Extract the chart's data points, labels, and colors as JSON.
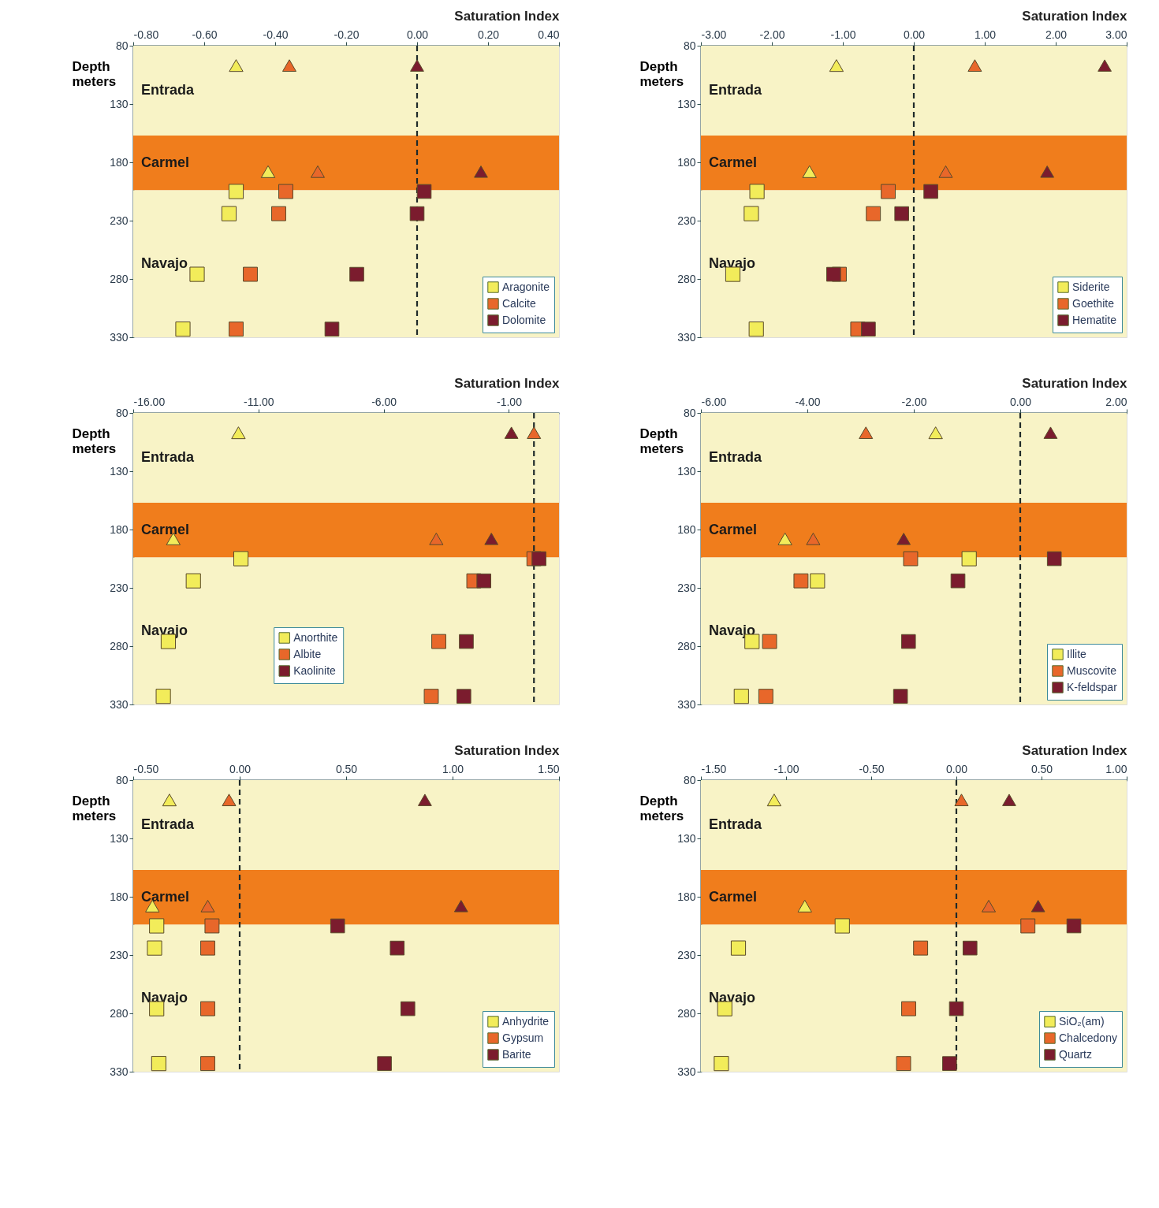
{
  "chart_data": [
    {
      "type": "scatter",
      "xlabel": "Saturation Index",
      "ylabel": "Depth meters",
      "xlim": [
        -0.8,
        0.4
      ],
      "ylim": [
        330,
        80
      ],
      "xticks": [
        {
          "value": -0.8,
          "label": "-0.80"
        },
        {
          "value": -0.6,
          "label": "-0.60"
        },
        {
          "value": -0.4,
          "label": "-0.40"
        },
        {
          "value": -0.2,
          "label": "-0.20"
        },
        {
          "value": 0,
          "label": "0.00"
        },
        {
          "value": 0.2,
          "label": "0.20"
        },
        {
          "value": 0.4,
          "label": "0.40"
        }
      ],
      "yticks": [
        80,
        130,
        180,
        230,
        280,
        330
      ],
      "grid": false,
      "legend": "bottom right",
      "bands": [
        {
          "axis": "y",
          "from": 80,
          "to": 157,
          "label": "Entrada",
          "color": "#f8f3c6"
        },
        {
          "axis": "y",
          "from": 157,
          "to": 204,
          "label": "Carmel",
          "color": "#f07d1c"
        },
        {
          "axis": "y",
          "from": 204,
          "to": 330,
          "label": "Navajo",
          "color": "#f8f3c6"
        }
      ],
      "ref_lines": [
        {
          "axis": "x",
          "value": 0,
          "line_style": "dashed",
          "color": "#1f2a2a"
        }
      ],
      "series": [
        {
          "name": "Aragonite",
          "color": "#f2ec5a",
          "marker": "square",
          "x": [
            -0.51,
            -0.53,
            -0.62,
            -0.66
          ],
          "values": [
            205,
            224,
            276,
            323
          ]
        },
        {
          "name": "Calcite",
          "color": "#e8672a",
          "marker": "square",
          "x": [
            -0.37,
            -0.39,
            -0.47,
            -0.51
          ],
          "values": [
            205,
            224,
            276,
            323
          ]
        },
        {
          "name": "Dolomite",
          "color": "#7b1c2e",
          "marker": "square",
          "x": [
            0.02,
            0.0,
            -0.17,
            -0.24
          ],
          "values": [
            205,
            224,
            276,
            323
          ]
        },
        {
          "color": "#f2ec5a",
          "marker": "triangle",
          "x": [
            -0.51,
            -0.42
          ],
          "values": [
            97,
            188
          ]
        },
        {
          "color": "#e8672a",
          "marker": "triangle",
          "x": [
            -0.36,
            -0.28
          ],
          "values": [
            97,
            188
          ]
        },
        {
          "color": "#7b1c2e",
          "marker": "triangle",
          "x": [
            0.0,
            0.18
          ],
          "values": [
            97,
            188
          ]
        }
      ]
    },
    {
      "type": "scatter",
      "xlabel": "Saturation Index",
      "ylabel": "Depth meters",
      "xlim": [
        -3,
        3
      ],
      "ylim": [
        330,
        80
      ],
      "xticks": [
        {
          "value": -3,
          "label": "-3.00"
        },
        {
          "value": -2,
          "label": "-2.00"
        },
        {
          "value": -1,
          "label": "-1.00"
        },
        {
          "value": 0,
          "label": "0.00"
        },
        {
          "value": 1,
          "label": "1.00"
        },
        {
          "value": 2,
          "label": "2.00"
        },
        {
          "value": 3,
          "label": "3.00"
        }
      ],
      "yticks": [
        80,
        130,
        180,
        230,
        280,
        330
      ],
      "grid": false,
      "legend": "bottom right",
      "bands": [
        {
          "axis": "y",
          "from": 80,
          "to": 157,
          "label": "Entrada",
          "color": "#f8f3c6"
        },
        {
          "axis": "y",
          "from": 157,
          "to": 204,
          "label": "Carmel",
          "color": "#f07d1c"
        },
        {
          "axis": "y",
          "from": 204,
          "to": 330,
          "label": "Navajo",
          "color": "#f8f3c6"
        }
      ],
      "ref_lines": [
        {
          "axis": "x",
          "value": 0,
          "line_style": "dashed",
          "color": "#1f2a2a"
        }
      ],
      "series": [
        {
          "name": "Siderite",
          "color": "#f2ec5a",
          "marker": "square",
          "x": [
            -2.21,
            -2.29,
            -2.55,
            -2.22
          ],
          "values": [
            205,
            224,
            276,
            323
          ]
        },
        {
          "name": "Goethite",
          "color": "#e8672a",
          "marker": "square",
          "x": [
            -0.36,
            -0.57,
            -1.05,
            -0.79
          ],
          "values": [
            205,
            224,
            276,
            323
          ]
        },
        {
          "name": "Hematite",
          "color": "#7b1c2e",
          "marker": "square",
          "x": [
            0.24,
            -0.17,
            -1.13,
            -0.64
          ],
          "values": [
            205,
            224,
            276,
            323
          ]
        },
        {
          "color": "#f2ec5a",
          "marker": "triangle",
          "x": [
            -1.09,
            -1.47
          ],
          "values": [
            97,
            188
          ]
        },
        {
          "color": "#e8672a",
          "marker": "triangle",
          "x": [
            0.86,
            0.45
          ],
          "values": [
            97,
            188
          ]
        },
        {
          "color": "#7b1c2e",
          "marker": "triangle",
          "x": [
            2.69,
            1.88
          ],
          "values": [
            97,
            188
          ]
        }
      ]
    },
    {
      "type": "scatter",
      "xlabel": "Saturation Index",
      "ylabel": "Depth meters",
      "xlim": [
        -16,
        1
      ],
      "ylim": [
        330,
        80
      ],
      "xticks": [
        {
          "value": -16,
          "label": "-16.00"
        },
        {
          "value": -11,
          "label": "-11.00"
        },
        {
          "value": -6,
          "label": "-6.00"
        },
        {
          "value": -1,
          "label": "-1.00"
        }
      ],
      "yticks": [
        80,
        130,
        180,
        230,
        280,
        330
      ],
      "grid": false,
      "legend": "bottom",
      "bands": [
        {
          "axis": "y",
          "from": 80,
          "to": 157,
          "label": "Entrada",
          "color": "#f8f3c6"
        },
        {
          "axis": "y",
          "from": 157,
          "to": 204,
          "label": "Carmel",
          "color": "#f07d1c"
        },
        {
          "axis": "y",
          "from": 204,
          "to": 330,
          "label": "Navajo",
          "color": "#f8f3c6"
        }
      ],
      "ref_lines": [
        {
          "axis": "x",
          "value": 0,
          "line_style": "dashed",
          "color": "#1f2a2a"
        }
      ],
      "series": [
        {
          "name": "Anorthite",
          "color": "#f2ec5a",
          "marker": "square",
          "x": [
            -11.7,
            -13.6,
            -14.6,
            -14.8
          ],
          "values": [
            205,
            224,
            276,
            323
          ]
        },
        {
          "name": "Albite",
          "color": "#e8672a",
          "marker": "square",
          "x": [
            0.0,
            -2.4,
            -3.8,
            -4.1
          ],
          "values": [
            205,
            224,
            276,
            323
          ]
        },
        {
          "name": "Kaolinite",
          "color": "#7b1c2e",
          "marker": "square",
          "x": [
            0.2,
            -2.0,
            -2.7,
            -2.8
          ],
          "values": [
            205,
            224,
            276,
            323
          ]
        },
        {
          "color": "#f2ec5a",
          "marker": "triangle",
          "x": [
            -11.8,
            -14.4
          ],
          "values": [
            97,
            188
          ]
        },
        {
          "color": "#e8672a",
          "marker": "triangle",
          "x": [
            0.0,
            -3.9
          ],
          "values": [
            97,
            188
          ]
        },
        {
          "color": "#7b1c2e",
          "marker": "triangle",
          "x": [
            -0.9,
            -1.7
          ],
          "values": [
            97,
            188
          ]
        }
      ]
    },
    {
      "type": "scatter",
      "xlabel": "Saturation Index",
      "ylabel": "Depth meters",
      "xlim": [
        -6,
        2
      ],
      "ylim": [
        330,
        80
      ],
      "xticks": [
        {
          "value": -6,
          "label": "-6.00"
        },
        {
          "value": -4,
          "label": "-4.00"
        },
        {
          "value": -2,
          "label": "-2.00"
        },
        {
          "value": 0,
          "label": "0.00"
        },
        {
          "value": 2,
          "label": "2.00"
        }
      ],
      "yticks": [
        80,
        130,
        180,
        230,
        280,
        330
      ],
      "grid": false,
      "legend": "bottom right",
      "bands": [
        {
          "axis": "y",
          "from": 80,
          "to": 157,
          "label": "Entrada",
          "color": "#f8f3c6"
        },
        {
          "axis": "y",
          "from": 157,
          "to": 204,
          "label": "Carmel",
          "color": "#f07d1c"
        },
        {
          "axis": "y",
          "from": 204,
          "to": 330,
          "label": "Navajo",
          "color": "#f8f3c6"
        }
      ],
      "ref_lines": [
        {
          "axis": "x",
          "value": 0,
          "line_style": "dashed",
          "color": "#1f2a2a"
        }
      ],
      "series": [
        {
          "name": "Illite",
          "color": "#f2ec5a",
          "marker": "square",
          "x": [
            -0.96,
            -3.81,
            -5.04,
            -5.24
          ],
          "values": [
            205,
            224,
            276,
            323
          ]
        },
        {
          "name": "Muscovite",
          "color": "#e8672a",
          "marker": "square",
          "x": [
            -2.06,
            -4.12,
            -4.71,
            -4.78
          ],
          "values": [
            205,
            224,
            276,
            323
          ]
        },
        {
          "name": "K-feldspar",
          "color": "#7b1c2e",
          "marker": "square",
          "x": [
            0.64,
            -1.17,
            -2.1,
            -2.25
          ],
          "values": [
            205,
            224,
            276,
            323
          ]
        },
        {
          "color": "#f2ec5a",
          "marker": "triangle",
          "x": [
            -1.59,
            -4.42
          ],
          "values": [
            97,
            188
          ]
        },
        {
          "color": "#e8672a",
          "marker": "triangle",
          "x": [
            -2.9,
            -3.89
          ],
          "values": [
            97,
            188
          ]
        },
        {
          "color": "#7b1c2e",
          "marker": "triangle",
          "x": [
            0.57,
            -2.19
          ],
          "values": [
            97,
            188
          ]
        }
      ]
    },
    {
      "type": "scatter",
      "xlabel": "Saturation Index",
      "ylabel": "Depth meters",
      "xlim": [
        -0.5,
        1.5
      ],
      "ylim": [
        330,
        80
      ],
      "xticks": [
        {
          "value": -0.5,
          "label": "-0.50"
        },
        {
          "value": 0,
          "label": "0.00"
        },
        {
          "value": 0.5,
          "label": "0.50"
        },
        {
          "value": 1,
          "label": "1.00"
        },
        {
          "value": 1.5,
          "label": "1.50"
        }
      ],
      "yticks": [
        80,
        130,
        180,
        230,
        280,
        330
      ],
      "grid": false,
      "legend": "bottom right",
      "bands": [
        {
          "axis": "y",
          "from": 80,
          "to": 157,
          "label": "Entrada",
          "color": "#f8f3c6"
        },
        {
          "axis": "y",
          "from": 157,
          "to": 204,
          "label": "Carmel",
          "color": "#f07d1c"
        },
        {
          "axis": "y",
          "from": 204,
          "to": 330,
          "label": "Navajo",
          "color": "#f8f3c6"
        }
      ],
      "ref_lines": [
        {
          "axis": "x",
          "value": 0,
          "line_style": "dashed",
          "color": "#1f2a2a"
        }
      ],
      "series": [
        {
          "name": "Anhydrite",
          "color": "#f2ec5a",
          "marker": "square",
          "x": [
            -0.39,
            -0.4,
            -0.39,
            -0.38
          ],
          "values": [
            205,
            224,
            276,
            323
          ]
        },
        {
          "name": "Gypsum",
          "color": "#e8672a",
          "marker": "square",
          "x": [
            -0.13,
            -0.15,
            -0.15,
            -0.15
          ],
          "values": [
            205,
            224,
            276,
            323
          ]
        },
        {
          "name": "Barite",
          "color": "#7b1c2e",
          "marker": "square",
          "x": [
            0.46,
            0.74,
            0.79,
            0.68
          ],
          "values": [
            205,
            224,
            276,
            323
          ]
        },
        {
          "color": "#f2ec5a",
          "marker": "triangle",
          "x": [
            -0.33,
            -0.41
          ],
          "values": [
            97,
            188
          ]
        },
        {
          "color": "#e8672a",
          "marker": "triangle",
          "x": [
            -0.05,
            -0.15
          ],
          "values": [
            97,
            188
          ]
        },
        {
          "color": "#7b1c2e",
          "marker": "triangle",
          "x": [
            0.87,
            1.04
          ],
          "values": [
            97,
            188
          ]
        }
      ]
    },
    {
      "type": "scatter",
      "xlabel": "Saturation Index",
      "ylabel": "Depth meters",
      "xlim": [
        -1.5,
        1
      ],
      "ylim": [
        330,
        80
      ],
      "xticks": [
        {
          "value": -1.5,
          "label": "-1.50"
        },
        {
          "value": -1,
          "label": "-1.00"
        },
        {
          "value": -0.5,
          "label": "-0.50"
        },
        {
          "value": 0,
          "label": "0.00"
        },
        {
          "value": 0.5,
          "label": "0.50"
        },
        {
          "value": 1,
          "label": "1.00"
        }
      ],
      "yticks": [
        80,
        130,
        180,
        230,
        280,
        330
      ],
      "grid": false,
      "legend": "bottom right",
      "bands": [
        {
          "axis": "y",
          "from": 80,
          "to": 157,
          "label": "Entrada",
          "color": "#f8f3c6"
        },
        {
          "axis": "y",
          "from": 157,
          "to": 204,
          "label": "Carmel",
          "color": "#f07d1c"
        },
        {
          "axis": "y",
          "from": 204,
          "to": 330,
          "label": "Navajo",
          "color": "#f8f3c6"
        }
      ],
      "ref_lines": [
        {
          "axis": "x",
          "value": 0,
          "line_style": "dashed",
          "color": "#1f2a2a"
        }
      ],
      "series": [
        {
          "name": "SiO₂(am)",
          "color": "#f2ec5a",
          "marker": "square",
          "x": [
            -0.67,
            -1.28,
            -1.36,
            -1.38
          ],
          "values": [
            205,
            224,
            276,
            323
          ]
        },
        {
          "name": "Chalcedony",
          "color": "#e8672a",
          "marker": "square",
          "x": [
            0.42,
            -0.21,
            -0.28,
            -0.31
          ],
          "values": [
            205,
            224,
            276,
            323
          ]
        },
        {
          "name": "Quartz",
          "color": "#7b1c2e",
          "marker": "square",
          "x": [
            0.69,
            0.08,
            0.0,
            -0.04
          ],
          "values": [
            205,
            224,
            276,
            323
          ]
        },
        {
          "color": "#f2ec5a",
          "marker": "triangle",
          "x": [
            -1.07,
            -0.89
          ],
          "values": [
            97,
            188
          ]
        },
        {
          "color": "#e8672a",
          "marker": "triangle",
          "x": [
            0.03,
            0.19
          ],
          "values": [
            97,
            188
          ]
        },
        {
          "color": "#7b1c2e",
          "marker": "triangle",
          "x": [
            0.31,
            0.48
          ],
          "values": [
            97,
            188
          ]
        }
      ]
    }
  ]
}
